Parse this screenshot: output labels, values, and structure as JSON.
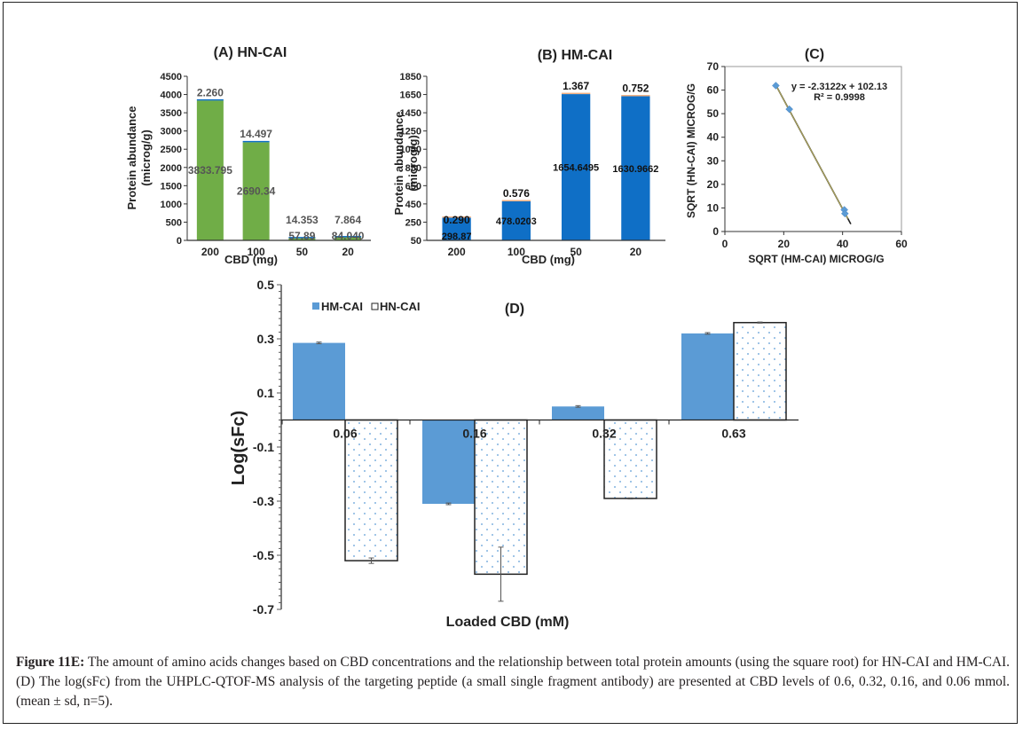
{
  "figure": {
    "caption_label": "Figure 11E:",
    "caption_text": " The amount of amino acids changes based on CBD concentrations and the relationship between total protein amounts (using the square root) for HN-CAI and HM-CAI. (D) The log(sFc) from the UHPLC-QTOF-MS analysis of the targeting peptide (a small single fragment antibody) are presented at CBD levels of 0.6, 0.32, 0.16, and 0.06 mmol. (mean ± sd, n=5)."
  },
  "colors": {
    "green": "#70ad47",
    "blue_dark": "#0f6fc6",
    "blue_light": "#5b9bd5",
    "orange": "#f4b183",
    "trend": "#a9a15a"
  },
  "chart_data": [
    {
      "id": "A",
      "type": "bar",
      "stacked": true,
      "title": "(A) HN-CAI",
      "xlabel": "CBD (mg)",
      "ylabel": [
        "Protein abundance",
        "(microg/g)"
      ],
      "categories": [
        "200",
        "100",
        "50",
        "20"
      ],
      "ylim": [
        0,
        4500
      ],
      "yticks": [
        0,
        500,
        1000,
        1500,
        2000,
        2500,
        3000,
        3500,
        4000,
        4500
      ],
      "series": [
        {
          "name": "base",
          "values": [
            3833.795,
            2690.34,
            57.89,
            84.04
          ],
          "labels": [
            "3833.795",
            "2690.34",
            "57.89",
            "84.040"
          ]
        },
        {
          "name": "top",
          "values": [
            2.26,
            14.497,
            14.353,
            7.864
          ],
          "labels": [
            "2.260",
            "14.497",
            "14.353",
            "7.864"
          ]
        }
      ]
    },
    {
      "id": "B",
      "type": "bar",
      "stacked": true,
      "title": "(B) HM-CAI",
      "xlabel": "CBD (mg)",
      "ylabel": [
        "Protein abundance",
        "(microg/g)"
      ],
      "categories": [
        "200",
        "100",
        "50",
        "20"
      ],
      "ylim": [
        50,
        1850
      ],
      "yticks": [
        50,
        250,
        450,
        650,
        850,
        1050,
        1250,
        1450,
        1650,
        1850
      ],
      "series": [
        {
          "name": "base",
          "values": [
            298.87,
            478.0203,
            1654.6495,
            1630.9662
          ],
          "labels": [
            "298.87",
            "478.0203",
            "1654.6495",
            "1630.9662"
          ]
        },
        {
          "name": "top",
          "values": [
            0.29,
            0.576,
            1.367,
            0.752
          ],
          "labels": [
            "0.290",
            "0.576",
            "1.367",
            "0.752"
          ]
        }
      ]
    },
    {
      "id": "C",
      "type": "scatter",
      "title": "(C)",
      "xlabel": "SQRT (HM-CAI) MICROG/G",
      "ylabel": "SQRT (HN-CAI) MICROG/G",
      "xlim": [
        0,
        60
      ],
      "ylim": [
        0,
        70
      ],
      "xticks": [
        0,
        20,
        40,
        60
      ],
      "yticks": [
        0,
        10,
        20,
        30,
        40,
        50,
        60,
        70
      ],
      "points": [
        {
          "x": 17.3,
          "y": 61.9
        },
        {
          "x": 21.9,
          "y": 51.9
        },
        {
          "x": 40.6,
          "y": 9.2
        },
        {
          "x": 40.8,
          "y": 7.6
        }
      ],
      "trendline": {
        "slope": -2.3122,
        "intercept": 102.13,
        "x_range": [
          17.3,
          42.8
        ]
      },
      "equation": "y = -2.3122x + 102.13",
      "r2": "R² = 0.9998"
    },
    {
      "id": "D",
      "type": "bar",
      "title": "(D)",
      "xlabel": "Loaded CBD (mM)",
      "ylabel": "Log(sFc)",
      "categories": [
        "0.06",
        "0.16",
        "0.32",
        "0.63"
      ],
      "ylim": [
        -0.7,
        0.5
      ],
      "yticks": [
        -0.7,
        -0.5,
        -0.3,
        -0.1,
        0.1,
        0.3,
        0.5
      ],
      "ytick_labels": [
        "-0.7",
        "-0.5",
        "-0.3",
        "-0.1",
        "0.1",
        "0.3",
        "0.5"
      ],
      "legend": "top-left",
      "series": [
        {
          "name": "HM-CAI",
          "values": [
            0.285,
            -0.31,
            0.05,
            0.32
          ],
          "errors": [
            0.003,
            0.003,
            0.003,
            0.003
          ]
        },
        {
          "name": "HN-CAI",
          "values": [
            -0.52,
            -0.57,
            -0.29,
            0.36
          ],
          "errors": [
            0.01,
            0.1,
            0.002,
            0.002
          ]
        }
      ]
    }
  ]
}
